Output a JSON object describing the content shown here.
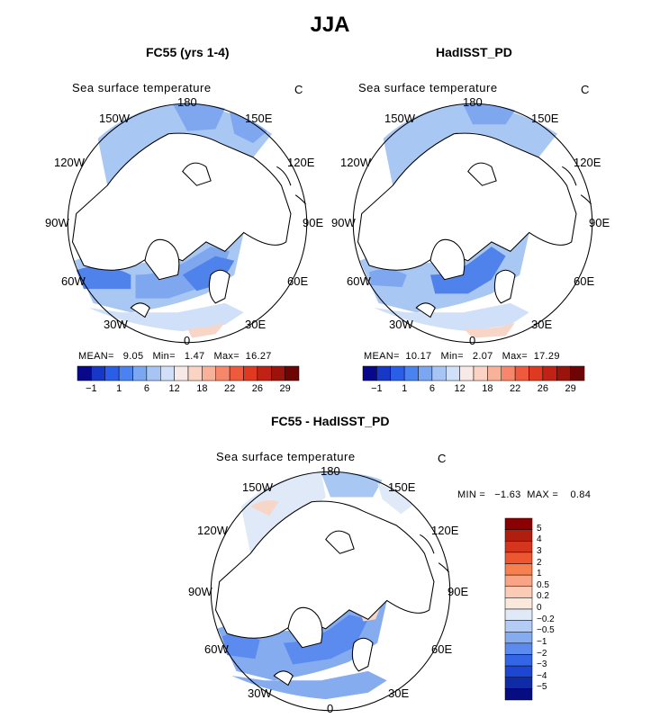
{
  "title": "JJA",
  "panels": [
    {
      "title": "FC55 (yrs 1-4)",
      "variable": "Sea surface temperature",
      "unit": "C",
      "stats": {
        "mean": "9.05",
        "min": "1.47",
        "max": "16.27"
      },
      "stats_line": "MEAN=   9.05   Min=   1.47   Max=  16.27"
    },
    {
      "title": "HadISST_PD",
      "variable": "Sea surface temperature",
      "unit": "C",
      "stats": {
        "mean": "10.17",
        "min": "2.07",
        "max": "17.29"
      },
      "stats_line": "MEAN=  10.17   Min=   2.07   Max=  17.29"
    },
    {
      "title": "FC55 - HadISST_PD",
      "variable": "Sea surface temperature",
      "unit": "C",
      "stats": {
        "min": "-1.63",
        "max": "0.84"
      },
      "stats_line": "MIN =   −1.63  MAX =    0.84"
    }
  ],
  "longitude_labels": {
    "lon_180": "180",
    "lon_150e": "150E",
    "lon_120e": "120E",
    "lon_90e": "90E",
    "lon_60e": "60E",
    "lon_30e": "30E",
    "lon_0": "0",
    "lon_30w": "30W",
    "lon_60w": "60W",
    "lon_90w": "90W",
    "lon_120w": "120W",
    "lon_150w": "150W"
  },
  "sst_colorbar": {
    "labels": [
      "−1",
      "1",
      "6",
      "12",
      "18",
      "22",
      "26",
      "29"
    ],
    "colors": [
      "#08088a",
      "#1737c6",
      "#2b5ee8",
      "#4a82ef",
      "#7aa6f2",
      "#a7c5f4",
      "#cfe0f8",
      "#f7e9e5",
      "#fbd3c4",
      "#f9b29a",
      "#f6876a",
      "#f05a3c",
      "#de3a22",
      "#c02316",
      "#9a140c",
      "#6e0505"
    ]
  },
  "diff_colorbar": {
    "labels": [
      "5",
      "4",
      "3",
      "2",
      "1",
      "0.5",
      "0.2",
      "0",
      "−0.2",
      "−0.5",
      "−1",
      "−2",
      "−3",
      "−4",
      "−5"
    ],
    "colors": [
      "#8b0000",
      "#b01e10",
      "#d4351c",
      "#ee5630",
      "#f6804e",
      "#f9a585",
      "#fbcbb6",
      "#fbe8dd",
      "#dfe9f8",
      "#b3ccf3",
      "#86acf0",
      "#5b8bee",
      "#3366e6",
      "#1d47d2",
      "#102ba8",
      "#060d80"
    ]
  },
  "colors": {
    "ocean_light": "#a9c7f3",
    "ocean_mid": "#7ea7ef",
    "ocean_deep": "#4f82ea",
    "ocean_pale": "#cfe0f8",
    "warm_pale": "#f7d6c8",
    "land": "#ffffff"
  }
}
